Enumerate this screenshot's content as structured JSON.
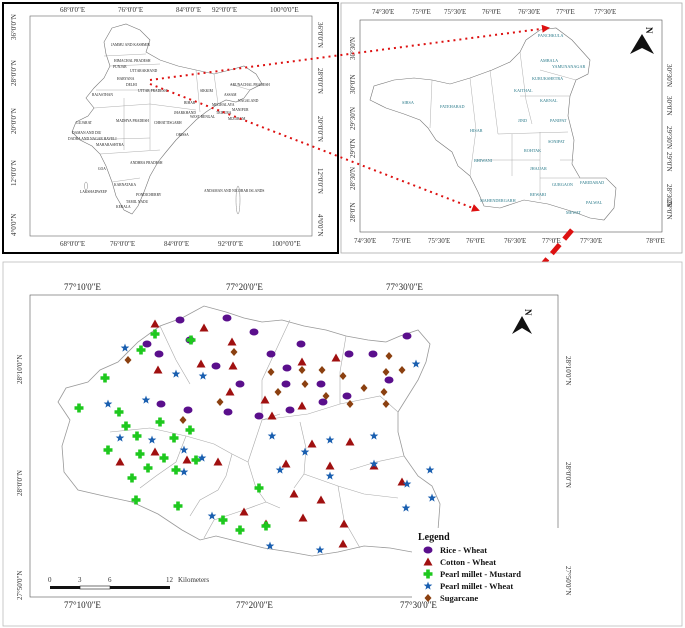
{
  "india_panel": {
    "top_ticks": [
      "68°0'0\"E",
      "76°0'0\"E",
      "84°0'0\"E",
      "92°0'0\"E",
      "100°0'0\"E"
    ],
    "bottom_ticks": [
      "68°0'0\"E",
      "76°0'0\"E",
      "84°0'0\"E",
      "92°0'0\"E",
      "100°0'0\"E"
    ],
    "left_ticks": [
      "36°0'0\"N",
      "28°0'0\"N",
      "20°0'0\"N",
      "12°0'0\"N",
      "4°0'0\"N"
    ],
    "right_ticks": [
      "36°0'0\"N",
      "28°0'0\"N",
      "20°0'0\"N",
      "12°0'0\"N",
      "4°0'0\"N"
    ],
    "states": [
      {
        "label": "JAMMU AND KASHMIR"
      },
      {
        "label": "HIMACHAL PRADESH"
      },
      {
        "label": "PUNJAB"
      },
      {
        "label": "HARYANA"
      },
      {
        "label": "DELHI"
      },
      {
        "label": "UTTARAKHAND"
      },
      {
        "label": "RAJASTHAN"
      },
      {
        "label": "UTTAR PRADESH"
      },
      {
        "label": "BIHAR"
      },
      {
        "label": "SIKKIM"
      },
      {
        "label": "ARUNACHAL PRADESH"
      },
      {
        "label": "ASSAM"
      },
      {
        "label": "NAGALAND"
      },
      {
        "label": "MEGHALAYA"
      },
      {
        "label": "MANIPUR"
      },
      {
        "label": "TRIPURA"
      },
      {
        "label": "MIZORAM"
      },
      {
        "label": "WEST BENGAL"
      },
      {
        "label": "JHARKHAND"
      },
      {
        "label": "GUJARAT"
      },
      {
        "label": "MADHYA PRADESH"
      },
      {
        "label": "CHHATTISGARH"
      },
      {
        "label": "ORISSA"
      },
      {
        "label": "DAMAN AND DIU"
      },
      {
        "label": "DADRA AND NAGAR HAVELI"
      },
      {
        "label": "MAHARASHTRA"
      },
      {
        "label": "ANDHRA PRADESH"
      },
      {
        "label": "GOA"
      },
      {
        "label": "KARNATAKA"
      },
      {
        "label": "LAKSHADWEEP"
      },
      {
        "label": "PONDICHERRY"
      },
      {
        "label": "TAMIL NADU"
      },
      {
        "label": "KERALA"
      },
      {
        "label": "ANDAMAN AND NICOBAR ISLANDS"
      }
    ]
  },
  "haryana_panel": {
    "top_ticks": [
      "74°30'E",
      "75°0'E",
      "75°30'E",
      "76°0'E",
      "76°30'E",
      "77°0'E",
      "77°30'E"
    ],
    "bottom_ticks": [
      "74°30'E",
      "75°0'E",
      "75°30'E",
      "76°0'E",
      "76°30'E",
      "77°0'E",
      "77°30'E",
      "78°0'E"
    ],
    "left_ticks": [
      "30°30'N",
      "30°0'N",
      "29°30'N",
      "29°0'N",
      "28°30'N",
      "28°0'N"
    ],
    "right_ticks": [
      "30°30'N",
      "30°0'N",
      "29°30'N",
      "29°0'N",
      "28°30'N",
      "28°0'N"
    ],
    "north_label": "N",
    "districts": [
      {
        "label": "PANCHKULA"
      },
      {
        "label": "AMBALA"
      },
      {
        "label": "YAMUNANAGAR"
      },
      {
        "label": "KURUKSHETRA"
      },
      {
        "label": "KAITHAL"
      },
      {
        "label": "KARNAL"
      },
      {
        "label": "SIRSA"
      },
      {
        "label": "FATEHABAD"
      },
      {
        "label": "HISAR"
      },
      {
        "label": "JIND"
      },
      {
        "label": "PANIPAT"
      },
      {
        "label": "SONIPAT"
      },
      {
        "label": "ROHTAK"
      },
      {
        "label": "BHIWANI"
      },
      {
        "label": "JHAJJAR"
      },
      {
        "label": "GURGAON"
      },
      {
        "label": "FARIDABAD"
      },
      {
        "label": "REWARI"
      },
      {
        "label": "MAHENDERGARH"
      },
      {
        "label": "PALWAL"
      },
      {
        "label": "MEWAT"
      }
    ]
  },
  "study_panel": {
    "top_ticks": [
      "77°10'0\"E",
      "77°20'0\"E",
      "77°30'0\"E"
    ],
    "bottom_ticks": [
      "77°10'0\"E",
      "77°20'0\"E",
      "77°30'0\"E"
    ],
    "left_ticks": [
      "28°10'0\"N",
      "28°0'0\"N",
      "27°50'0\"N"
    ],
    "right_ticks": [
      "28°10'0\"N",
      "28°0'0\"N",
      "27°50'0\"N"
    ],
    "north_label": "N",
    "scale_numbers": [
      "0",
      "3",
      "6",
      "12"
    ],
    "scale_units": "Kilometers",
    "legend_title": "Legend",
    "legend": [
      {
        "label": "Rice - Wheat",
        "color": "#5a0f8c",
        "shape": "circle"
      },
      {
        "label": "Cotton - Wheat",
        "color": "#a01010",
        "shape": "triangle"
      },
      {
        "label": "Pearl millet - Mustard",
        "color": "#1ec81e",
        "shape": "cross"
      },
      {
        "label": "Pearl millet - Wheat",
        "color": "#1a5fb0",
        "shape": "star"
      },
      {
        "label": "Sugarcane",
        "color": "#8b4010",
        "shape": "diamond"
      }
    ]
  },
  "colors": {
    "arrow": "#dd1111",
    "outline": "#999999",
    "frame": "#000000"
  }
}
